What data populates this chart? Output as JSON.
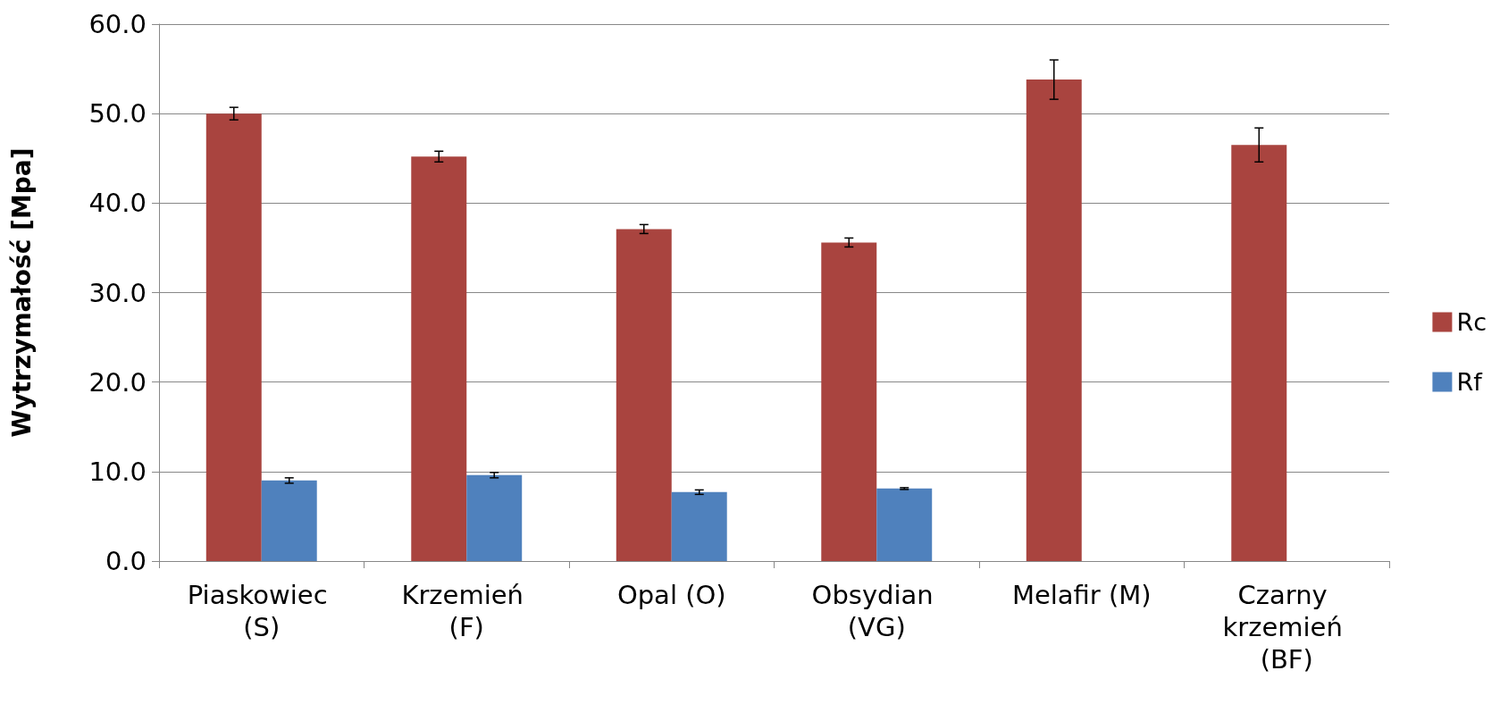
{
  "chart_data": {
    "type": "bar",
    "ylabel": "Wytrzymałość [Mpa]",
    "categories": [
      "Piaskowiec (S)",
      "Krzemień (F)",
      "Opal (O)",
      "Obsydian (VG)",
      "Melafir (M)",
      "Czarny krzemień (BF)"
    ],
    "series": [
      {
        "name": "Rc",
        "color": "#a9443f",
        "values": [
          50.0,
          45.2,
          37.1,
          35.6,
          53.8,
          46.5
        ],
        "errors": [
          0.7,
          0.6,
          0.5,
          0.5,
          2.2,
          1.9
        ]
      },
      {
        "name": "Rf",
        "color": "#4f81bd",
        "values": [
          9.0,
          9.6,
          7.7,
          8.1,
          null,
          null
        ],
        "errors": [
          0.3,
          0.3,
          0.25,
          0.1,
          null,
          null
        ]
      }
    ],
    "ylim": [
      0,
      60
    ],
    "yticks": [
      {
        "value": 0,
        "label": "0.0"
      },
      {
        "value": 10,
        "label": "10.0"
      },
      {
        "value": 20,
        "label": "20.0"
      },
      {
        "value": 30,
        "label": "30.0"
      },
      {
        "value": 40,
        "label": "40.0"
      },
      {
        "value": 50,
        "label": "50.0"
      },
      {
        "value": 60,
        "label": "60.0"
      }
    ],
    "grid": "y",
    "legend": "right"
  }
}
